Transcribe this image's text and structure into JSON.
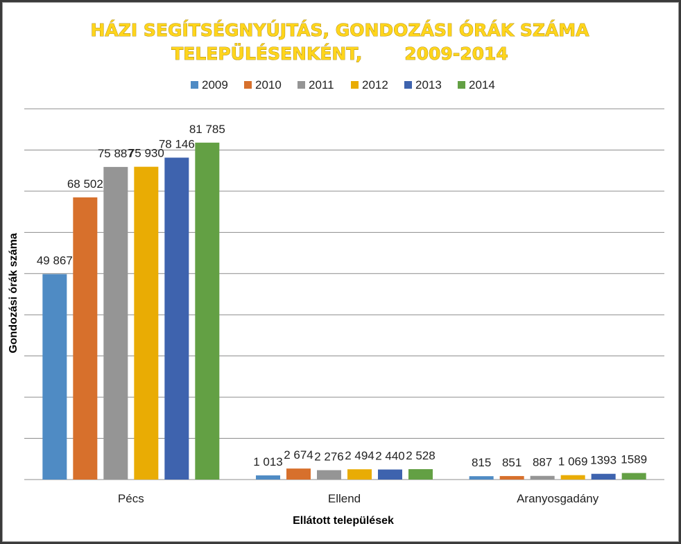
{
  "chart_data": {
    "type": "bar",
    "title_lines": [
      "HÁZI SEGÍTSÉGNYÚJTÁS, GONDOZÁSI ÓRÁK SZÁMA",
      "TELEPÜLÉSENKÉNT,       2009-2014"
    ],
    "xlabel": "Ellátott települések",
    "ylabel": "Gondozási órák száma",
    "categories": [
      "Pécs",
      "Ellend",
      "Aranyosgadány"
    ],
    "ylim": [
      0,
      90000
    ],
    "grid": true,
    "legend_position": "top",
    "series": [
      {
        "name": "2009",
        "color": "#4f8bc4",
        "values": [
          49867,
          1013,
          815
        ],
        "labels": [
          "49 867",
          "1 013",
          "815"
        ]
      },
      {
        "name": "2010",
        "color": "#d7702c",
        "values": [
          68502,
          2674,
          851
        ],
        "labels": [
          "68 502",
          "2 674",
          "851"
        ]
      },
      {
        "name": "2011",
        "color": "#959595",
        "values": [
          75887,
          2276,
          887
        ],
        "labels": [
          "75 887",
          "2 276",
          "887"
        ]
      },
      {
        "name": "2012",
        "color": "#e9ac04",
        "values": [
          75930,
          2494,
          1069
        ],
        "labels": [
          "75 930",
          "2 494",
          "1 069"
        ]
      },
      {
        "name": "2013",
        "color": "#3e63ae",
        "values": [
          78146,
          2440,
          1393
        ],
        "labels": [
          "78 146",
          "2 440",
          "1393"
        ]
      },
      {
        "name": "2014",
        "color": "#63a044",
        "values": [
          81785,
          2528,
          1589
        ],
        "labels": [
          "81 785",
          "2 528",
          "1589"
        ]
      }
    ]
  }
}
